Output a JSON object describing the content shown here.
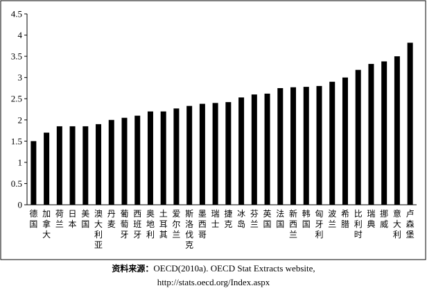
{
  "chart_data": {
    "type": "bar",
    "title": "",
    "xlabel": "",
    "ylabel": "",
    "ylim": [
      0,
      4.5
    ],
    "yticks": [
      "0",
      "0.5",
      "1",
      "1.5",
      "2",
      "2.5",
      "3",
      "3.5",
      "4",
      "4.5"
    ],
    "grid": false,
    "legend": "none",
    "bar_color": "#000000",
    "categories": [
      "德国",
      "加拿大",
      "荷兰",
      "日本",
      "美国",
      "澳大利亚",
      "丹麦",
      "葡萄牙",
      "西班牙",
      "奥地利",
      "土耳其",
      "爱尔兰",
      "斯洛伐克",
      "墨西哥",
      "瑞士",
      "捷克",
      "冰岛",
      "芬兰",
      "英国",
      "法国",
      "新西兰",
      "韩国",
      "匈牙利",
      "波兰",
      "希腊",
      "比利时",
      "瑞典",
      "挪威",
      "意大利",
      "卢森堡"
    ],
    "values": [
      1.5,
      1.7,
      1.85,
      1.85,
      1.85,
      1.9,
      2.0,
      2.05,
      2.1,
      2.2,
      2.2,
      2.27,
      2.33,
      2.38,
      2.4,
      2.42,
      2.53,
      2.6,
      2.62,
      2.75,
      2.77,
      2.78,
      2.8,
      2.9,
      3.0,
      3.18,
      3.32,
      3.38,
      3.5,
      3.82
    ]
  },
  "source_note": {
    "prefix": "资料来源：",
    "line1": "OECD(2010a). OECD Stat Extracts website,",
    "line2": "http://stats.oecd.org/Index.aspx"
  }
}
